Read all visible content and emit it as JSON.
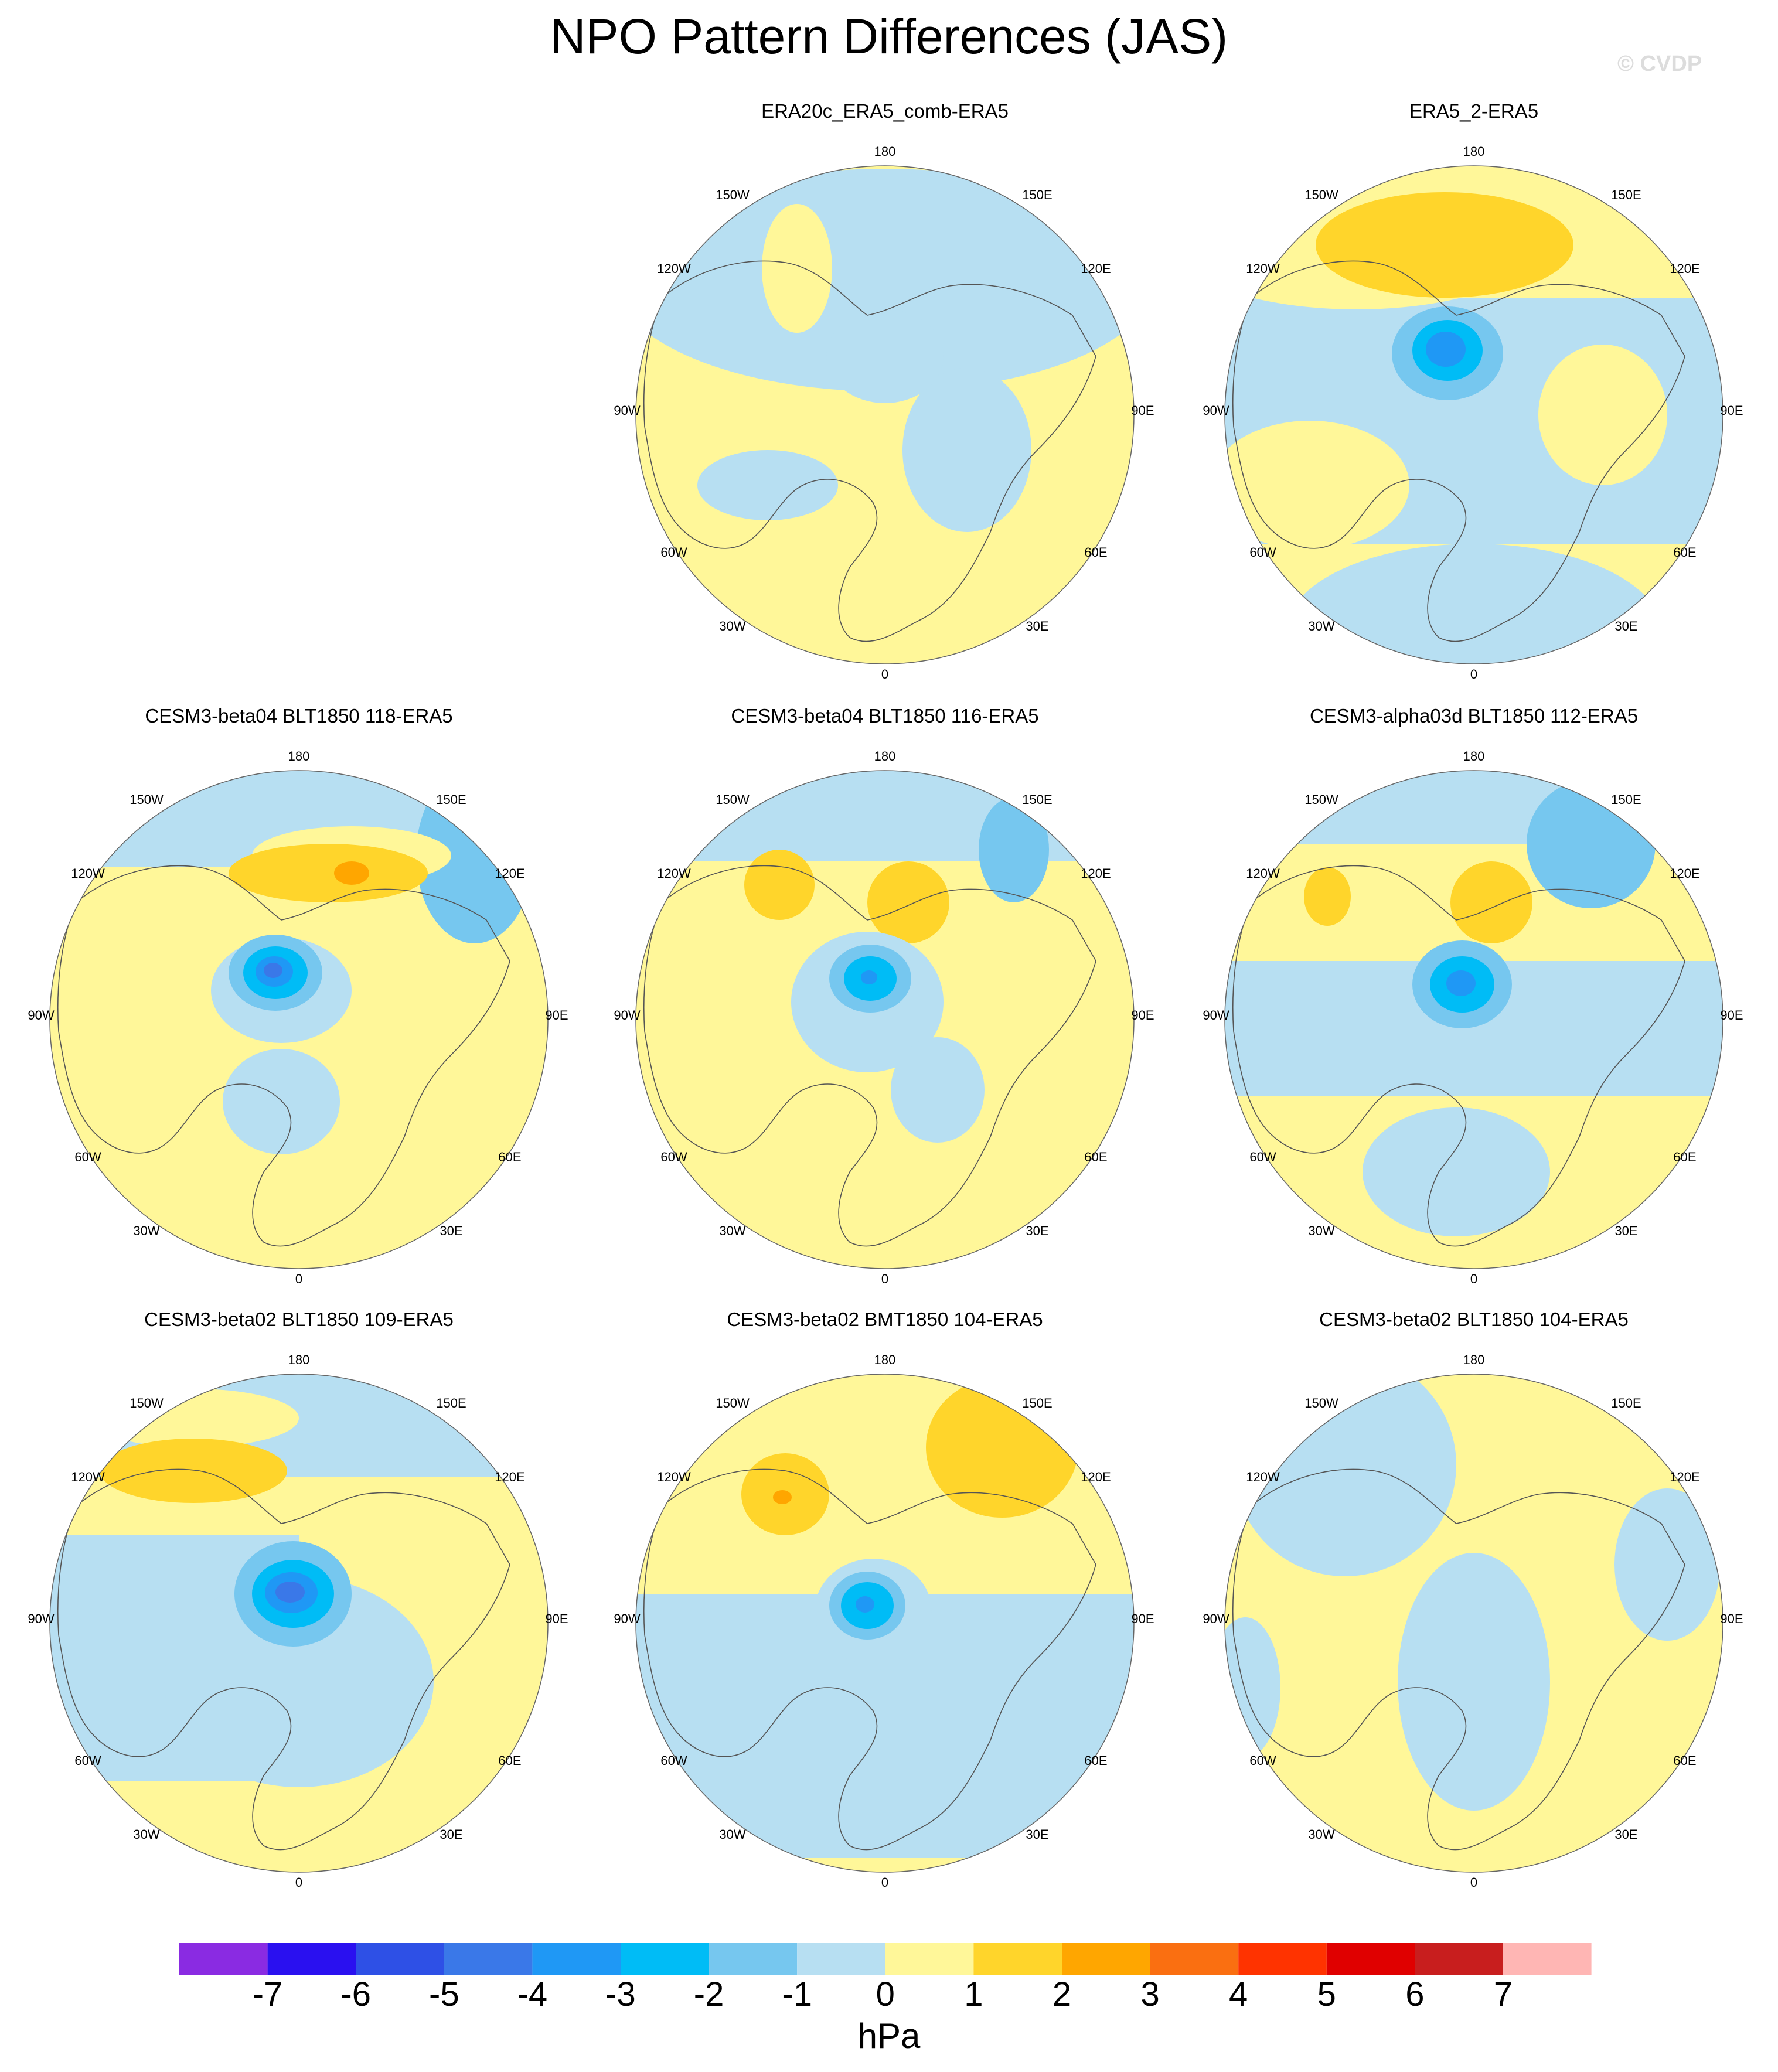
{
  "title": "NPO Pattern Differences (JAS)",
  "copyright": "© CVDP",
  "colors": {
    "land_outline": "#555555",
    "ocean_bg": "#ffffff",
    "levels": [
      "#8a2be2",
      "#2a10f0",
      "#2e50e6",
      "#3a78e8",
      "#1f98f5",
      "#00bcf6",
      "#76c7ef",
      "#b7dff2",
      "#fff799",
      "#ffd52b",
      "#ffa600",
      "#fa6f11",
      "#ff3300",
      "#e00000",
      "#c81e1e",
      "#ffb6b4"
    ]
  },
  "colorbar": {
    "ticks": [
      "-7",
      "-6",
      "-5",
      "-4",
      "-3",
      "-2",
      "-1",
      "0",
      "1",
      "2",
      "3",
      "4",
      "5",
      "6",
      "7"
    ],
    "units": "hPa"
  },
  "longitude_labels": [
    "180",
    "150E",
    "120E",
    "90E",
    "60E",
    "30E",
    "0",
    "30W",
    "60W",
    "90W",
    "120W",
    "150W"
  ],
  "panels": [
    {
      "title": "ERA20c_ERA5_comb-ERA5",
      "pattern": "era20c"
    },
    {
      "title": "ERA5_2-ERA5",
      "pattern": "era5_2"
    },
    {
      "title": "CESM3-beta04 BLT1850 118-ERA5",
      "pattern": "b04_118"
    },
    {
      "title": "CESM3-beta04 BLT1850 116-ERA5",
      "pattern": "b04_116"
    },
    {
      "title": "CESM3-alpha03d BLT1850 112-ERA5",
      "pattern": "a03d_112"
    },
    {
      "title": "CESM3-beta02 BLT1850 109-ERA5",
      "pattern": "b02_109"
    },
    {
      "title": "CESM3-beta02 BMT1850 104-ERA5",
      "pattern": "b02_bmt104"
    },
    {
      "title": "CESM3-beta02 BLT1850 104-ERA5",
      "pattern": "b02_blt104"
    }
  ]
}
